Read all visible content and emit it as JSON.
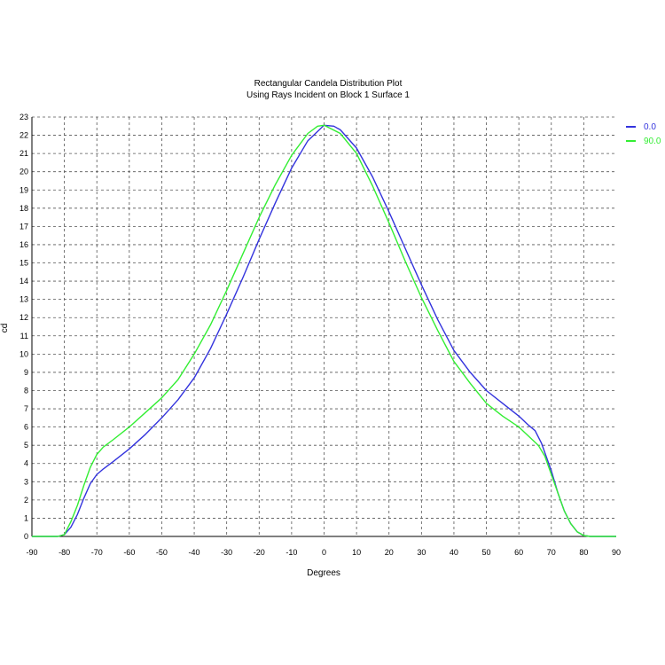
{
  "chart_data": {
    "type": "line",
    "title": "Rectangular Candela Distribution Plot",
    "subtitle": "Using Rays Incident on Block 1 Surface 1",
    "xlabel": "Degrees",
    "ylabel": "cd",
    "xlim": [
      -90,
      90
    ],
    "ylim": [
      0,
      23
    ],
    "xticks": [
      -90,
      -80,
      -70,
      -60,
      -50,
      -40,
      -30,
      -20,
      -10,
      0,
      10,
      20,
      30,
      40,
      50,
      60,
      70,
      80,
      90
    ],
    "yticks": [
      0,
      1,
      2,
      3,
      4,
      5,
      6,
      7,
      8,
      9,
      10,
      11,
      12,
      13,
      14,
      15,
      16,
      17,
      18,
      19,
      20,
      21,
      22,
      23
    ],
    "grid": true,
    "legend": "top-right",
    "series": [
      {
        "name": "0.0",
        "color": "#3333dd",
        "x": [
          -90,
          -82,
          -80,
          -78,
          -76,
          -74,
          -72,
          -70,
          -68,
          -65,
          -60,
          -55,
          -50,
          -45,
          -40,
          -35,
          -30,
          -25,
          -20,
          -15,
          -10,
          -5,
          0,
          3,
          5,
          10,
          15,
          20,
          25,
          30,
          35,
          40,
          45,
          50,
          55,
          60,
          63,
          65,
          67,
          70,
          72,
          74,
          76,
          78,
          80,
          82,
          90
        ],
        "y": [
          0,
          0,
          0.1,
          0.5,
          1.2,
          2.1,
          2.9,
          3.4,
          3.7,
          4.1,
          4.8,
          5.6,
          6.5,
          7.5,
          8.7,
          10.3,
          12.2,
          14.2,
          16.3,
          18.3,
          20.2,
          21.7,
          22.55,
          22.5,
          22.3,
          21.3,
          19.7,
          17.8,
          15.8,
          13.8,
          11.9,
          10.2,
          9.0,
          8.0,
          7.3,
          6.6,
          6.1,
          5.8,
          5.1,
          3.6,
          2.4,
          1.4,
          0.7,
          0.25,
          0.05,
          0,
          0
        ]
      },
      {
        "name": "90.0",
        "color": "#33ee33",
        "x": [
          -90,
          -82,
          -80,
          -78,
          -76,
          -74,
          -72,
          -70,
          -68,
          -65,
          -60,
          -55,
          -50,
          -45,
          -40,
          -35,
          -30,
          -25,
          -20,
          -15,
          -10,
          -5,
          -2,
          0,
          5,
          10,
          15,
          20,
          25,
          30,
          35,
          40,
          45,
          50,
          55,
          60,
          63,
          66,
          68,
          70,
          72,
          74,
          76,
          78,
          80,
          82,
          90
        ],
        "y": [
          0,
          0,
          0.1,
          0.8,
          1.7,
          2.8,
          3.8,
          4.5,
          4.9,
          5.3,
          6.0,
          6.8,
          7.6,
          8.6,
          10.0,
          11.6,
          13.5,
          15.5,
          17.5,
          19.3,
          20.9,
          22.1,
          22.5,
          22.55,
          22.1,
          21.0,
          19.2,
          17.2,
          15.1,
          13.1,
          11.3,
          9.6,
          8.4,
          7.3,
          6.6,
          6.0,
          5.5,
          5.0,
          4.4,
          3.4,
          2.4,
          1.4,
          0.7,
          0.25,
          0.05,
          0,
          0
        ]
      }
    ]
  }
}
